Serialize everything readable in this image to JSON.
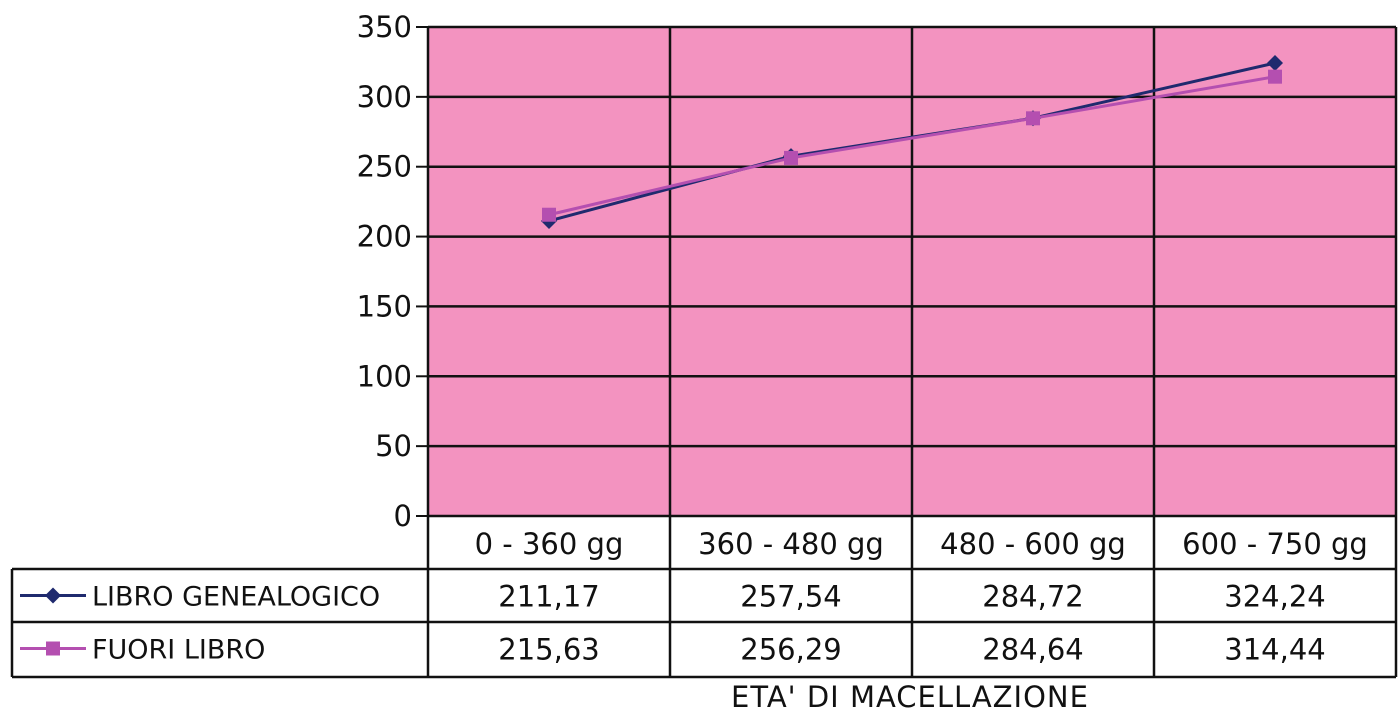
{
  "chart_data": {
    "type": "line",
    "categories": [
      "0 - 360 gg",
      "360 - 480 gg",
      "480 - 600 gg",
      "600 - 750 gg"
    ],
    "series": [
      {
        "name": "LIBRO GENEALOGICO",
        "values": [
          211.17,
          257.54,
          284.72,
          324.24
        ],
        "labels": [
          "211,17",
          "257,54",
          "284,72",
          "324,24"
        ],
        "color": "#1f2a6e",
        "marker": "diamond"
      },
      {
        "name": "FUORI LIBRO",
        "values": [
          215.63,
          256.29,
          284.64,
          314.44
        ],
        "labels": [
          "215,63",
          "256,29",
          "284,64",
          "314,44"
        ],
        "color": "#b44fb0",
        "marker": "square"
      }
    ],
    "title": "",
    "xlabel": "ETA' DI MACELLAZIONE",
    "ylabel": "",
    "ylim": [
      0,
      350
    ],
    "yticks": [
      0,
      50,
      100,
      150,
      200,
      250,
      300,
      350
    ],
    "grid": true,
    "plot_background": "#f393c0",
    "data_table": true
  }
}
